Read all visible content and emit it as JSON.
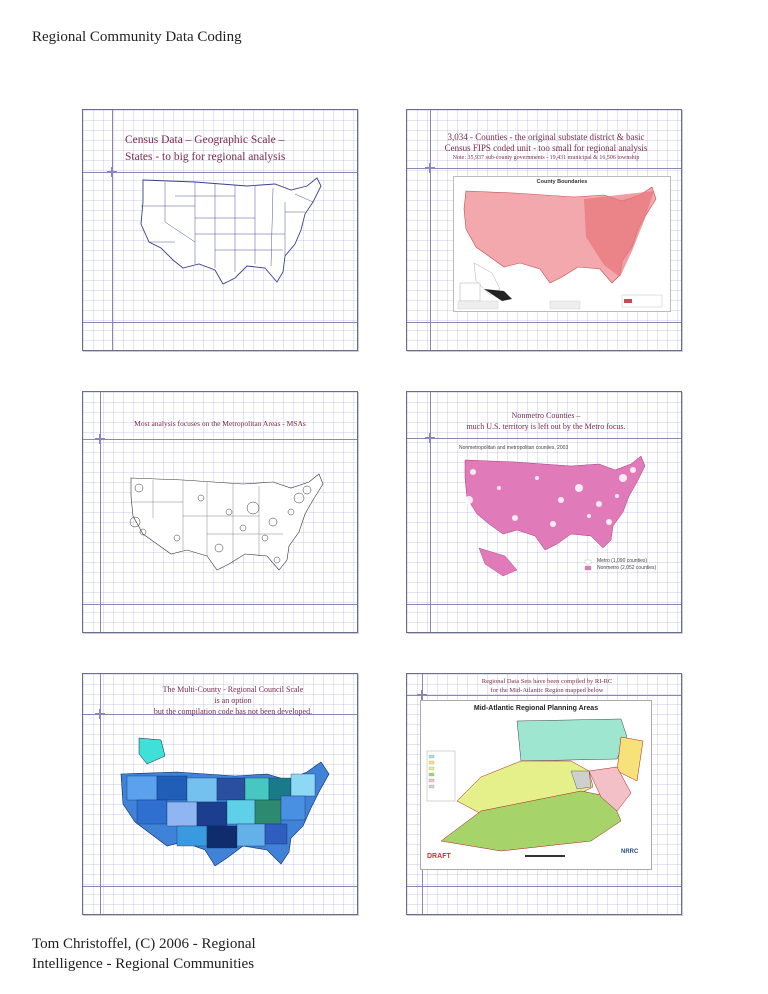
{
  "header": {
    "title": "Regional Community Data Coding"
  },
  "footer": {
    "line1": "Tom Christoffel, (C) 2006 - Regional",
    "line2": "Intelligence - Regional Communities"
  },
  "slides": [
    {
      "title_line1": "Census Data – Geographic Scale –",
      "title_line2": "States - to big for regional analysis"
    },
    {
      "title_line1": "3,034 - Counties - the original substate district & basic",
      "title_line2": "Census FIPS coded unit - too small for regional analysis",
      "note": "Note: 35,937 sub-county governments - 19,431 municipal & 16,506 township",
      "map_title": "County Boundaries"
    },
    {
      "title_line1": "Most analysis focuses on the Metropolitan Areas - MSAs"
    },
    {
      "title_line1": "Nonmetro Counties –",
      "title_line2": "much U.S. territory is left out by the Metro focus.",
      "map_title": "Nonmetropolitan and metropolitan counties, 2003",
      "legend": [
        {
          "label": "Metro (1,090 counties)",
          "color": "#ffffff"
        },
        {
          "label": "Nonmetro (2,052 counties)",
          "color": "#e07ab8"
        }
      ]
    },
    {
      "title_line1": "The Multi-County - Regional Council Scale",
      "title_line2": "is an option",
      "title_line3": "but the compilation code has not been developed."
    },
    {
      "title_line1": "Regional Data Sets have been compiled by RI-RC",
      "title_line2": "for the Mid-Atlantic Region mapped below",
      "map_title": "Mid-Atlantic Regional Planning Areas",
      "draft_label": "DRAFT",
      "logo_label": "NRRC"
    }
  ],
  "colors": {
    "title_text": "#7a2a4a",
    "slide_border": "#6d6d8f",
    "county_map": "#e8757a",
    "nonmetro": "#e07ab8",
    "multi_county": "#3f82d8",
    "mid_atlantic": "#a6d36a"
  }
}
